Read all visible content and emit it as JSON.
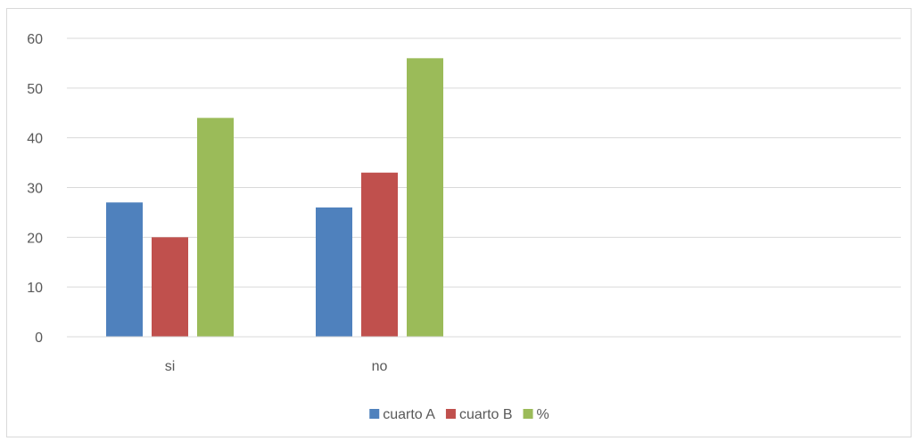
{
  "chart_data": {
    "type": "bar",
    "categories": [
      "si",
      "no"
    ],
    "series": [
      {
        "name": "cuarto A",
        "values": [
          27,
          26
        ],
        "color": "#4f81bd"
      },
      {
        "name": "cuarto B",
        "values": [
          20,
          33
        ],
        "color": "#c0504d"
      },
      {
        "name": "%",
        "values": [
          44,
          56
        ],
        "color": "#9bbb59"
      }
    ],
    "ylim": [
      0,
      60
    ],
    "yticks": [
      0,
      10,
      20,
      30,
      40,
      50,
      60
    ],
    "grid": true,
    "legend_position": "bottom",
    "colors": {
      "grid": "#d9d9d9",
      "axis": "#d9d9d9",
      "text": "#595959"
    }
  }
}
